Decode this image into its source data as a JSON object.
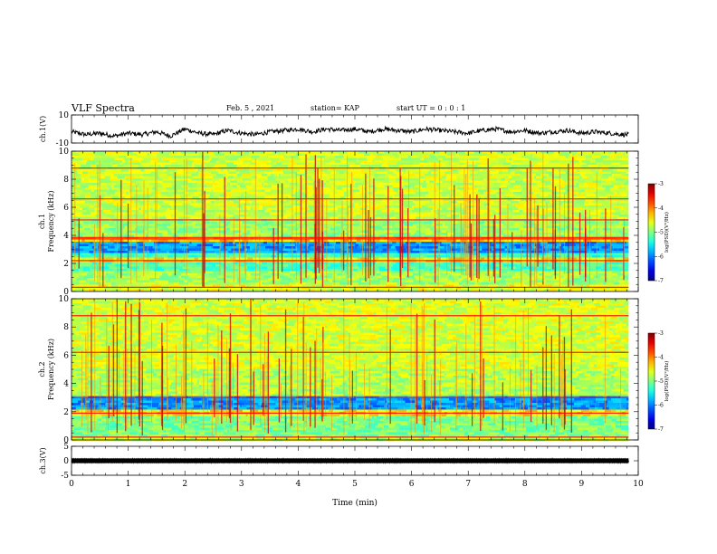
{
  "header": {
    "title": "VLF Spectra",
    "date": "Feb. 5 , 2021",
    "station": "station= KAP",
    "start_ut": "start UT =  0 : 0 : 1"
  },
  "chart_data": [
    {
      "type": "line",
      "panel": "waveform-ch1",
      "ylabel": "ch.1(V)",
      "ylim": [
        -10,
        10
      ],
      "y_ticks": [
        "10",
        "-10"
      ],
      "x_range_min": [
        0,
        9.83
      ],
      "series": [
        {
          "x": [
            0,
            0.25,
            0.5,
            0.75,
            1,
            1.25,
            1.5,
            1.75,
            2,
            2.25,
            2.5,
            2.75,
            3,
            3.25,
            3.5,
            3.75,
            4,
            4.25,
            4.5,
            4.75,
            5,
            5.25,
            5.5,
            5.75,
            6,
            6.25,
            6.5,
            6.75,
            7,
            7.25,
            7.5,
            7.75,
            8,
            8.25,
            8.5,
            8.75,
            9,
            9.25,
            9.5,
            9.75
          ],
          "values": [
            -2,
            -4,
            -3,
            -5,
            -3,
            -4,
            -2,
            -5,
            0,
            -3,
            -4,
            -1,
            -3,
            -4,
            -2,
            -1,
            0,
            -2,
            0,
            -1,
            0,
            -2,
            0,
            -1,
            -2,
            0,
            -1,
            -2,
            -3,
            -1,
            0,
            -2,
            -1,
            -3,
            -2,
            -1,
            -3,
            -2,
            -3,
            -4
          ]
        }
      ],
      "color": "#000000"
    },
    {
      "type": "heatmap",
      "panel": "spectrogram-ch1",
      "ylabel": "ch.1\nFrequency (kHz)",
      "ylim": [
        0,
        10
      ],
      "y_ticks": [
        "0",
        "2",
        "4",
        "6",
        "8",
        "10"
      ],
      "x_range_min": [
        0,
        9.83
      ],
      "colorbar": {
        "label": "log(PSD)(V²/Hz)",
        "range": [
          -7,
          -3
        ],
        "ticks": [
          "-3",
          "-4",
          "-5",
          "-6",
          "-7"
        ]
      },
      "band_profile": [
        {
          "range": [
            0,
            0.5
          ],
          "level": -4.6
        },
        {
          "range": [
            0.5,
            1.4
          ],
          "level": -4.85
        },
        {
          "range": [
            1.4,
            2.1
          ],
          "level": -5.2
        },
        {
          "range": [
            2.1,
            2.4
          ],
          "level": -4.4
        },
        {
          "range": [
            2.4,
            2.8
          ],
          "level": -5.3
        },
        {
          "range": [
            2.8,
            3.6
          ],
          "level": -5.9
        },
        {
          "range": [
            3.6,
            3.9
          ],
          "level": -4.3
        },
        {
          "range": [
            3.9,
            5.2
          ],
          "level": -4.9
        },
        {
          "range": [
            5.2,
            10
          ],
          "level": -4.7
        }
      ],
      "tones_khz": [
        0.3,
        2.2,
        3.75,
        3.85,
        5.1,
        6.6,
        8.8
      ]
    },
    {
      "type": "heatmap",
      "panel": "spectrogram-ch2",
      "ylabel": "ch.2\nFrequency (kHz)",
      "ylim": [
        0,
        10
      ],
      "y_ticks": [
        "0",
        "2",
        "4",
        "6",
        "8",
        "10"
      ],
      "x_range_min": [
        0,
        9.83
      ],
      "colorbar": {
        "label": "log(PSD)(V²/Hz)",
        "range": [
          -7,
          -3
        ],
        "ticks": [
          "-3",
          "-4",
          "-5",
          "-6",
          "-7"
        ]
      },
      "band_profile": [
        {
          "range": [
            0,
            0.3
          ],
          "level": -4.7
        },
        {
          "range": [
            0.3,
            1.7
          ],
          "level": -5.0
        },
        {
          "range": [
            1.7,
            2.1
          ],
          "level": -4.4
        },
        {
          "range": [
            2.1,
            3.1
          ],
          "level": -5.9
        },
        {
          "range": [
            3.1,
            5.0
          ],
          "level": -4.8
        },
        {
          "range": [
            5.0,
            10
          ],
          "level": -4.65
        }
      ],
      "tones_khz": [
        0.2,
        1.9,
        3.0,
        6.2,
        8.8
      ]
    },
    {
      "type": "line",
      "panel": "waveform-ch3",
      "ylabel": "ch.3(V)",
      "ylim": [
        -5,
        5
      ],
      "y_ticks": [
        "5",
        "0",
        "-5"
      ],
      "x_range_min": [
        0,
        9.83
      ],
      "series": [
        {
          "x": [
            0,
            9.83
          ],
          "values": [
            0,
            0
          ],
          "amplitude": 0.5
        }
      ],
      "color": "#000000"
    }
  ],
  "xaxis": {
    "label": "Time (min)",
    "ticks": [
      "0",
      "1",
      "2",
      "3",
      "4",
      "5",
      "6",
      "7",
      "8",
      "9",
      "10"
    ]
  }
}
